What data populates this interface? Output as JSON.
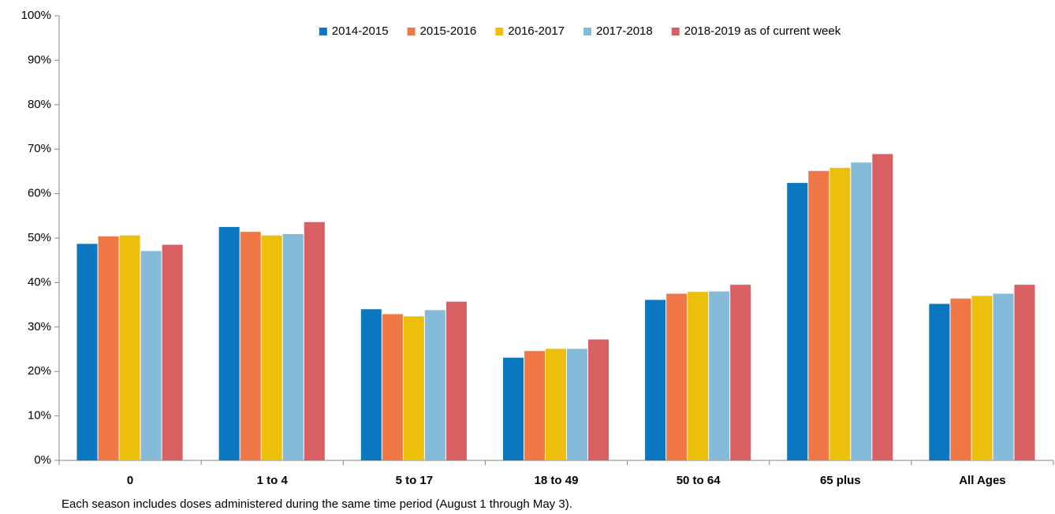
{
  "chart_data": {
    "type": "bar",
    "categories": [
      "0",
      "1 to 4",
      "5 to 17",
      "18 to 49",
      "50 to 64",
      "65 plus",
      "All Ages"
    ],
    "series": [
      {
        "name": "2014-2015",
        "color": "#0a77c0",
        "values": [
          48.7,
          52.5,
          34.0,
          23.1,
          36.1,
          62.4,
          35.2
        ]
      },
      {
        "name": "2015-2016",
        "color": "#f07846",
        "values": [
          50.4,
          51.4,
          32.9,
          24.6,
          37.5,
          65.1,
          36.4
        ]
      },
      {
        "name": "2016-2017",
        "color": "#ecc00a",
        "values": [
          50.6,
          50.6,
          32.4,
          25.1,
          37.9,
          65.8,
          37.0
        ]
      },
      {
        "name": "2017-2018",
        "color": "#85bbd9",
        "values": [
          47.1,
          50.9,
          33.8,
          25.1,
          38.0,
          67.0,
          37.5
        ]
      },
      {
        "name": "2018-2019 as of current week",
        "color": "#d85f62",
        "values": [
          48.5,
          53.6,
          35.7,
          27.2,
          39.5,
          68.9,
          39.5
        ]
      }
    ],
    "ylim": [
      0,
      100
    ],
    "yticks": [
      {
        "value": 0,
        "label": "0%"
      },
      {
        "value": 10,
        "label": "10%"
      },
      {
        "value": 20,
        "label": "20%"
      },
      {
        "value": 30,
        "label": "30%"
      },
      {
        "value": 40,
        "label": "40%"
      },
      {
        "value": 50,
        "label": "50%"
      },
      {
        "value": 60,
        "label": "60%"
      },
      {
        "value": 70,
        "label": "70%"
      },
      {
        "value": 80,
        "label": "80%"
      },
      {
        "value": 90,
        "label": "90%"
      },
      {
        "value": 100,
        "label": "100%"
      }
    ],
    "grid": false,
    "legend": "top",
    "note": "Each season includes doses administered during the same time period (August 1 through May 3)."
  }
}
